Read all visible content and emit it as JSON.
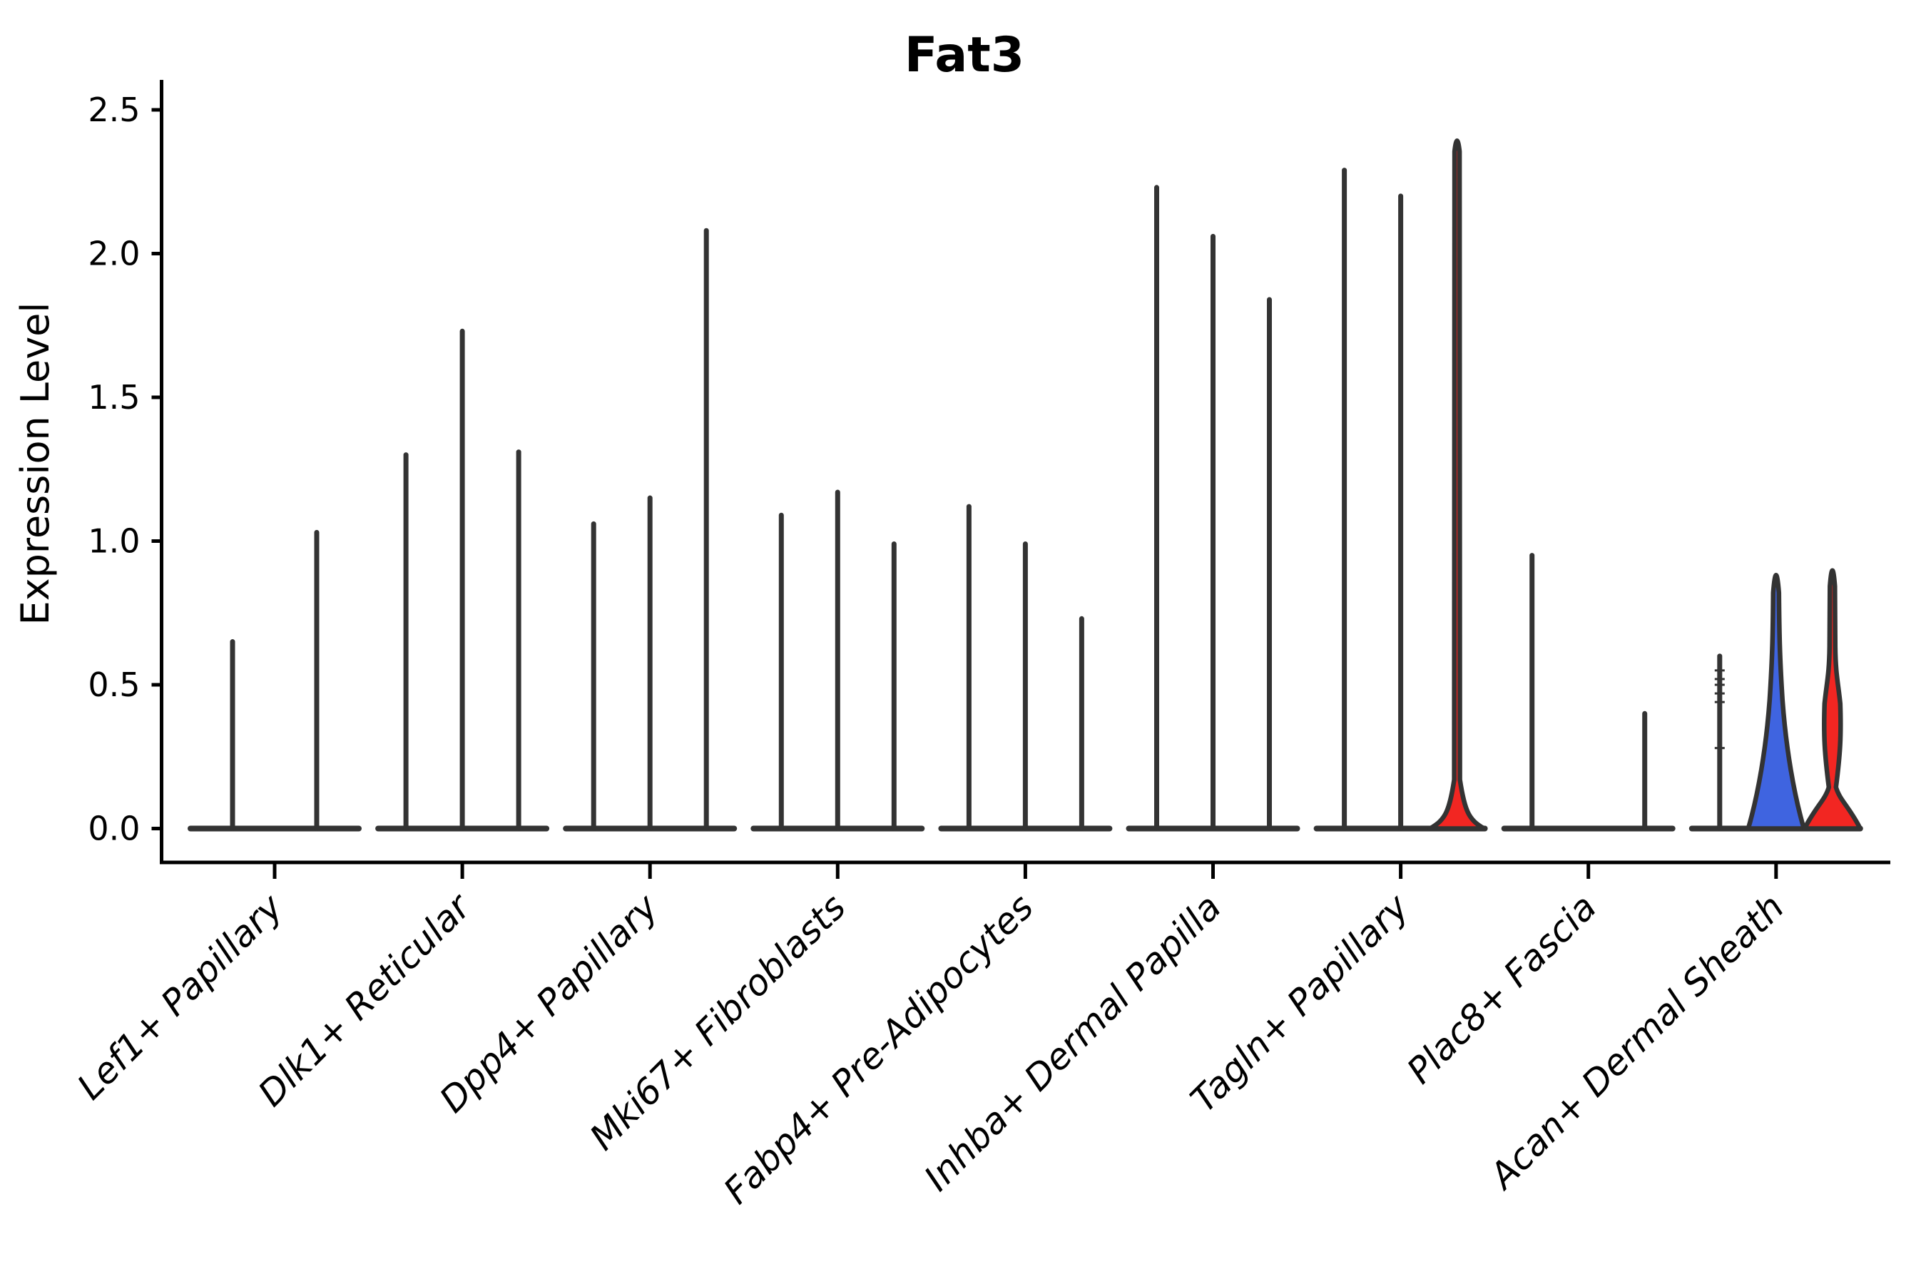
{
  "chart_data": {
    "type": "violin",
    "title": "Fat3",
    "xlabel": "",
    "ylabel": "Expression Level",
    "ylim": [
      0,
      2.5
    ],
    "yticks": [
      "0.0",
      "0.5",
      "1.0",
      "1.5",
      "2.0",
      "2.5"
    ],
    "grid": false,
    "legend": "none",
    "x_tick_label_rotation_deg": 45,
    "categories": [
      "Lef1+ Papillary",
      "Dlk1+ Reticular",
      "Dpp4+ Papillary",
      "Mki67+ Fibroblasts",
      "Fabp4+ Pre-Adipocytes",
      "Inhba+ Dermal Papilla",
      "Tagln+ Papillary",
      "Plac8+ Fascia",
      "Acan+ Dermal Sheath"
    ],
    "series": [
      {
        "category": "Lef1+ Papillary",
        "violins": [
          {
            "max": 0.65
          },
          {
            "max": 1.03
          }
        ]
      },
      {
        "category": "Dlk1+ Reticular",
        "violins": [
          {
            "max": 1.3
          },
          {
            "max": 1.73
          },
          {
            "max": 1.31
          }
        ]
      },
      {
        "category": "Dpp4+ Papillary",
        "violins": [
          {
            "max": 1.06
          },
          {
            "max": 1.15
          },
          {
            "max": 2.08
          }
        ]
      },
      {
        "category": "Mki67+ Fibroblasts",
        "violins": [
          {
            "max": 1.09
          },
          {
            "max": 1.17
          },
          {
            "max": 0.99
          }
        ]
      },
      {
        "category": "Fabp4+ Pre-Adipocytes",
        "violins": [
          {
            "max": 1.12
          },
          {
            "max": 0.99
          },
          {
            "max": 0.73
          }
        ]
      },
      {
        "category": "Inhba+ Dermal Papilla",
        "violins": [
          {
            "max": 2.23
          },
          {
            "max": 2.06
          },
          {
            "max": 1.84
          }
        ]
      },
      {
        "category": "Tagln+ Papillary",
        "violins": [
          {
            "max": 2.29
          },
          {
            "max": 2.2
          },
          {
            "max": 2.41,
            "fill": "red",
            "shape": "flask",
            "base_height": 0.17
          }
        ]
      },
      {
        "category": "Plac8+ Fascia",
        "violins": [
          {
            "max": 0.95
          },
          {
            "max": 0,
            "shape": "flat"
          },
          {
            "max": 0.4
          }
        ]
      },
      {
        "category": "Acan+ Dermal Sheath",
        "violins": [
          {
            "max": 0.6,
            "quantile_dashes": [
              0.55,
              0.52,
              0.5,
              0.47,
              0.44,
              0.28
            ]
          },
          {
            "max": 0.92,
            "fill": "blue",
            "shape": "cone"
          },
          {
            "max": 0.93,
            "fill": "red",
            "shape": "waist"
          }
        ]
      }
    ],
    "colors": {
      "red": "#F22622",
      "blue": "#3F64E0",
      "line": "#333333",
      "text": "#000000"
    }
  }
}
